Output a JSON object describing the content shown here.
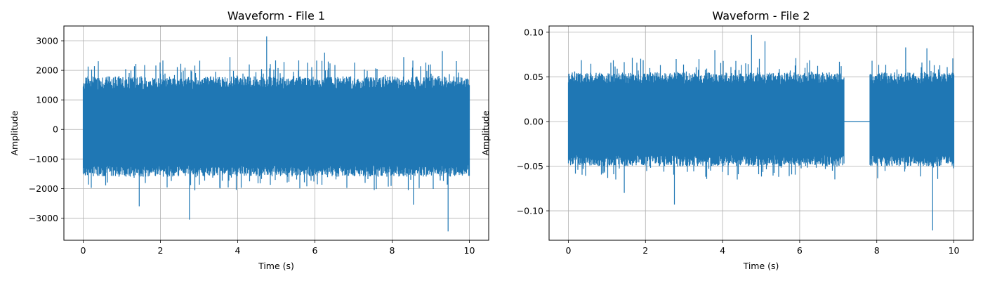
{
  "chart_data": [
    {
      "type": "line",
      "title": "Waveform - File 1",
      "xlabel": "Time (s)",
      "ylabel": "Amplitude",
      "xlim": [
        -0.5,
        10.5
      ],
      "ylim": [
        -3750,
        3500
      ],
      "xticks": [
        0,
        2,
        4,
        6,
        8,
        10
      ],
      "xtick_labels": [
        "0",
        "2",
        "4",
        "6",
        "8",
        "10"
      ],
      "yticks": [
        -3000,
        -2000,
        -1000,
        0,
        1000,
        2000,
        3000
      ],
      "ytick_labels": [
        "−3000",
        "−2000",
        "−1000",
        "0",
        "1000",
        "2000",
        "3000"
      ],
      "grid": true,
      "color": "#1f77b4",
      "series": [
        {
          "x_start": 0,
          "x_end": 10,
          "segments": [
            [
              0,
              10
            ]
          ],
          "typical_range": [
            -1600,
            1800
          ],
          "peaks": [
            [
              4.75,
              3150
            ],
            [
              2.75,
              -3050
            ],
            [
              9.45,
              -3450
            ],
            [
              6.25,
              2600
            ],
            [
              9.3,
              2650
            ],
            [
              8.3,
              2450
            ],
            [
              3.8,
              2450
            ],
            [
              1.45,
              -2600
            ],
            [
              8.55,
              -2550
            ]
          ]
        }
      ]
    },
    {
      "type": "line",
      "title": "Waveform - File 2",
      "xlabel": "Time (s)",
      "ylabel": "Amplitude",
      "xlim": [
        -0.5,
        10.5
      ],
      "ylim": [
        -0.133,
        0.107
      ],
      "xticks": [
        0,
        2,
        4,
        6,
        8,
        10
      ],
      "xtick_labels": [
        "0",
        "2",
        "4",
        "6",
        "8",
        "10"
      ],
      "yticks": [
        -0.1,
        -0.05,
        0.0,
        0.05,
        0.1
      ],
      "ytick_labels": [
        "−0.10",
        "−0.05",
        "0.00",
        "0.05",
        "0.10"
      ],
      "grid": true,
      "color": "#1f77b4",
      "series": [
        {
          "x_start": 0,
          "x_end": 10,
          "segments": [
            [
              0,
              7.15
            ],
            [
              7.82,
              10
            ]
          ],
          "flat_value": 0.0,
          "typical_range": [
            -0.05,
            0.055
          ],
          "peaks": [
            [
              4.75,
              0.097
            ],
            [
              2.75,
              -0.093
            ],
            [
              9.45,
              -0.122
            ],
            [
              8.75,
              0.083
            ],
            [
              9.3,
              0.082
            ],
            [
              3.8,
              0.08
            ],
            [
              1.45,
              -0.08
            ],
            [
              5.1,
              0.09
            ]
          ]
        }
      ]
    }
  ]
}
